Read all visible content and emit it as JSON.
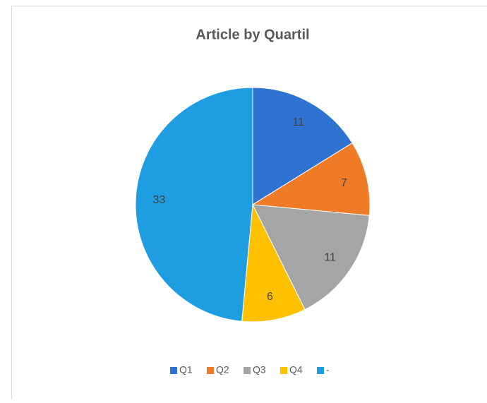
{
  "chart_data": {
    "type": "pie",
    "title": "Article by Quartil",
    "categories": [
      "Q1",
      "Q2",
      "Q3",
      "Q4",
      "-"
    ],
    "values": [
      11,
      7,
      11,
      6,
      33
    ],
    "colors": [
      "#2e72d2",
      "#f07b26",
      "#a5a5a5",
      "#ffc000",
      "#1e9ee0"
    ],
    "legend": "bottom"
  }
}
